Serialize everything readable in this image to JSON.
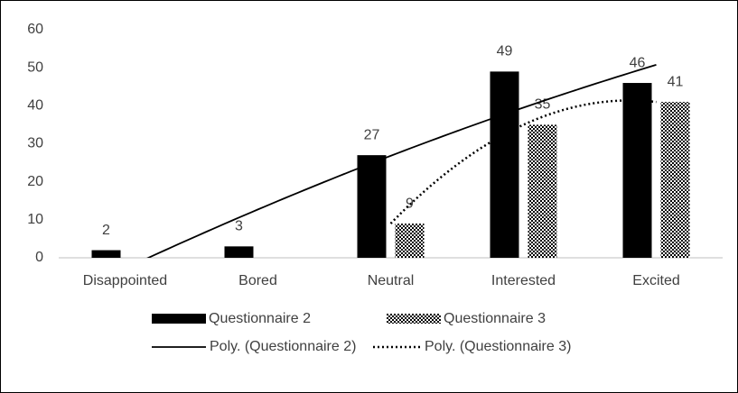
{
  "chart_data": {
    "type": "bar",
    "categories": [
      "Disappointed",
      "Bored",
      "Neutral",
      "Interested",
      "Excited"
    ],
    "series": [
      {
        "name": "Questionnaire 2",
        "color": "#000000",
        "pattern": "solid",
        "values": [
          2,
          3,
          27,
          49,
          46
        ],
        "trendline": {
          "name": "Poly. (Questionnaire 2)",
          "type": "polynomial",
          "order": 2,
          "style": "solid"
        }
      },
      {
        "name": "Questionnaire 3",
        "color": "#000000",
        "pattern": "checker",
        "values": [
          null,
          null,
          9,
          35,
          41
        ],
        "trendline": {
          "name": "Poly. (Questionnaire 3)",
          "type": "polynomial",
          "order": 2,
          "style": "dotted"
        }
      }
    ],
    "ylim": [
      0,
      60
    ],
    "yticks": [
      0,
      10,
      20,
      30,
      40,
      50,
      60
    ],
    "grid": false,
    "legend": "bottom"
  }
}
